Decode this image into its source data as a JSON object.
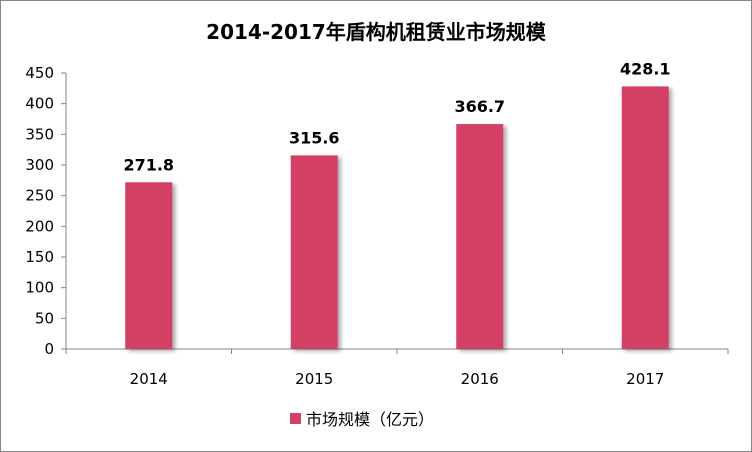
{
  "chart_data": {
    "type": "bar",
    "title": "2014-2017年盾构机租赁业市场规模",
    "xlabel": "",
    "ylabel": "",
    "categories": [
      "2014",
      "2015",
      "2016",
      "2017"
    ],
    "series": [
      {
        "name": "市场规模（亿元）",
        "values": [
          271.8,
          315.6,
          366.7,
          428.1
        ],
        "color": "#d43f63"
      }
    ],
    "data_labels": [
      "271.8",
      "315.6",
      "366.7",
      "428.1"
    ],
    "ylim": [
      0,
      450
    ],
    "yticks": [
      0,
      50,
      100,
      150,
      200,
      250,
      300,
      350,
      400,
      450
    ],
    "grid": false,
    "legend_position": "bottom"
  }
}
